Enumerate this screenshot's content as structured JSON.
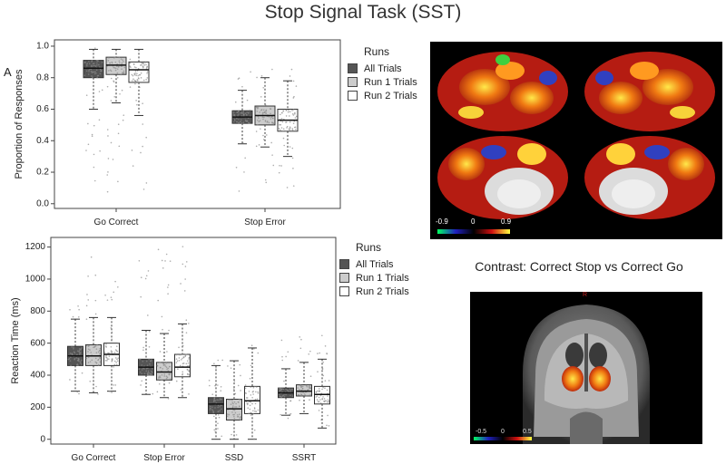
{
  "title": "Stop Signal Task (SST)",
  "panel_label": "A",
  "legend_top": {
    "header": "Runs",
    "items": [
      "All Trials",
      "Run 1 Trials",
      "Run 2 Trials"
    ]
  },
  "legend_bottom": {
    "header": "Runs",
    "items": [
      "All Trials",
      "Run 1 Trials",
      "Run 2 Trials"
    ]
  },
  "colors": {
    "all_trials": "#555555",
    "run1": "#cccccc",
    "run2": "#ffffff",
    "jitter": "#8a8a8a"
  },
  "surface_colorbar": {
    "min_label": "-0.9",
    "mid_label": "0",
    "max_label": "0.9"
  },
  "contrast_title": "Contrast: Correct Stop vs Correct Go",
  "coronal_colorbar": {
    "min_label": "-0.5",
    "mid_label": "0",
    "max_label": "0.5"
  },
  "coronal_marker": "R",
  "chart_data": [
    {
      "type": "box",
      "title": "",
      "xlabel": "",
      "ylabel": "Proportion of Responses",
      "ylim": [
        -0.03,
        1.04
      ],
      "yticks": [
        0.0,
        0.2,
        0.4,
        0.6,
        0.8,
        1.0
      ],
      "ytick_labels": [
        "0.0",
        "0.2",
        "0.4",
        "0.6",
        "0.8",
        "1.0"
      ],
      "categories": [
        "Go Correct",
        "Stop Error"
      ],
      "series": [
        {
          "name": "All Trials",
          "boxes": [
            {
              "min": 0.6,
              "q1": 0.8,
              "median": 0.86,
              "q3": 0.91,
              "max": 0.98,
              "spread": [
                0.04,
                0.99
              ]
            },
            {
              "min": 0.38,
              "q1": 0.51,
              "median": 0.55,
              "q3": 0.59,
              "max": 0.72,
              "spread": [
                0.07,
                0.86
              ]
            }
          ]
        },
        {
          "name": "Run 1 Trials",
          "boxes": [
            {
              "min": 0.64,
              "q1": 0.82,
              "median": 0.88,
              "q3": 0.93,
              "max": 0.98,
              "spread": [
                0.02,
                0.99
              ]
            },
            {
              "min": 0.36,
              "q1": 0.5,
              "median": 0.56,
              "q3": 0.62,
              "max": 0.8,
              "spread": [
                0.07,
                0.9
              ]
            }
          ]
        },
        {
          "name": "Run 2 Trials",
          "boxes": [
            {
              "min": 0.56,
              "q1": 0.77,
              "median": 0.85,
              "q3": 0.9,
              "max": 0.98,
              "spread": [
                0.02,
                0.99
              ]
            },
            {
              "min": 0.3,
              "q1": 0.46,
              "median": 0.53,
              "q3": 0.6,
              "max": 0.78,
              "spread": [
                0.07,
                0.99
              ]
            }
          ]
        }
      ]
    },
    {
      "type": "box",
      "title": "",
      "xlabel": "",
      "ylabel": "Reaction Time (ms)",
      "ylim": [
        -30,
        1260
      ],
      "yticks": [
        0,
        200,
        400,
        600,
        800,
        1000,
        1200
      ],
      "ytick_labels": [
        "0",
        "200",
        "400",
        "600",
        "800",
        "1000",
        "1200"
      ],
      "categories": [
        "Go Correct",
        "Stop Error",
        "SSD",
        "SSRT"
      ],
      "series": [
        {
          "name": "All Trials",
          "boxes": [
            {
              "min": 300,
              "q1": 460,
              "median": 520,
              "q3": 580,
              "max": 750,
              "spread": [
                280,
                960
              ]
            },
            {
              "min": 280,
              "q1": 400,
              "median": 450,
              "q3": 500,
              "max": 680,
              "spread": [
                260,
                1150
              ]
            },
            {
              "min": 0,
              "q1": 160,
              "median": 220,
              "q3": 260,
              "max": 460,
              "spread": [
                0,
                520
              ]
            },
            {
              "min": 150,
              "q1": 260,
              "median": 290,
              "q3": 320,
              "max": 440,
              "spread": [
                130,
                620
              ]
            }
          ]
        },
        {
          "name": "Run 1 Trials",
          "boxes": [
            {
              "min": 290,
              "q1": 460,
              "median": 520,
              "q3": 590,
              "max": 760,
              "spread": [
                270,
                1180
              ]
            },
            {
              "min": 260,
              "q1": 370,
              "median": 420,
              "q3": 480,
              "max": 660,
              "spread": [
                240,
                1200
              ]
            },
            {
              "min": 0,
              "q1": 120,
              "median": 190,
              "q3": 250,
              "max": 490,
              "spread": [
                0,
                530
              ]
            },
            {
              "min": 160,
              "q1": 270,
              "median": 300,
              "q3": 340,
              "max": 480,
              "spread": [
                120,
                640
              ]
            }
          ]
        },
        {
          "name": "Run 2 Trials",
          "boxes": [
            {
              "min": 300,
              "q1": 460,
              "median": 530,
              "q3": 600,
              "max": 760,
              "spread": [
                280,
                1000
              ]
            },
            {
              "min": 260,
              "q1": 390,
              "median": 450,
              "q3": 530,
              "max": 720,
              "spread": [
                240,
                1230
              ]
            },
            {
              "min": 0,
              "q1": 160,
              "median": 240,
              "q3": 330,
              "max": 570,
              "spread": [
                0,
                620
              ]
            },
            {
              "min": 70,
              "q1": 220,
              "median": 280,
              "q3": 330,
              "max": 500,
              "spread": [
                50,
                650
              ]
            }
          ]
        }
      ]
    }
  ]
}
